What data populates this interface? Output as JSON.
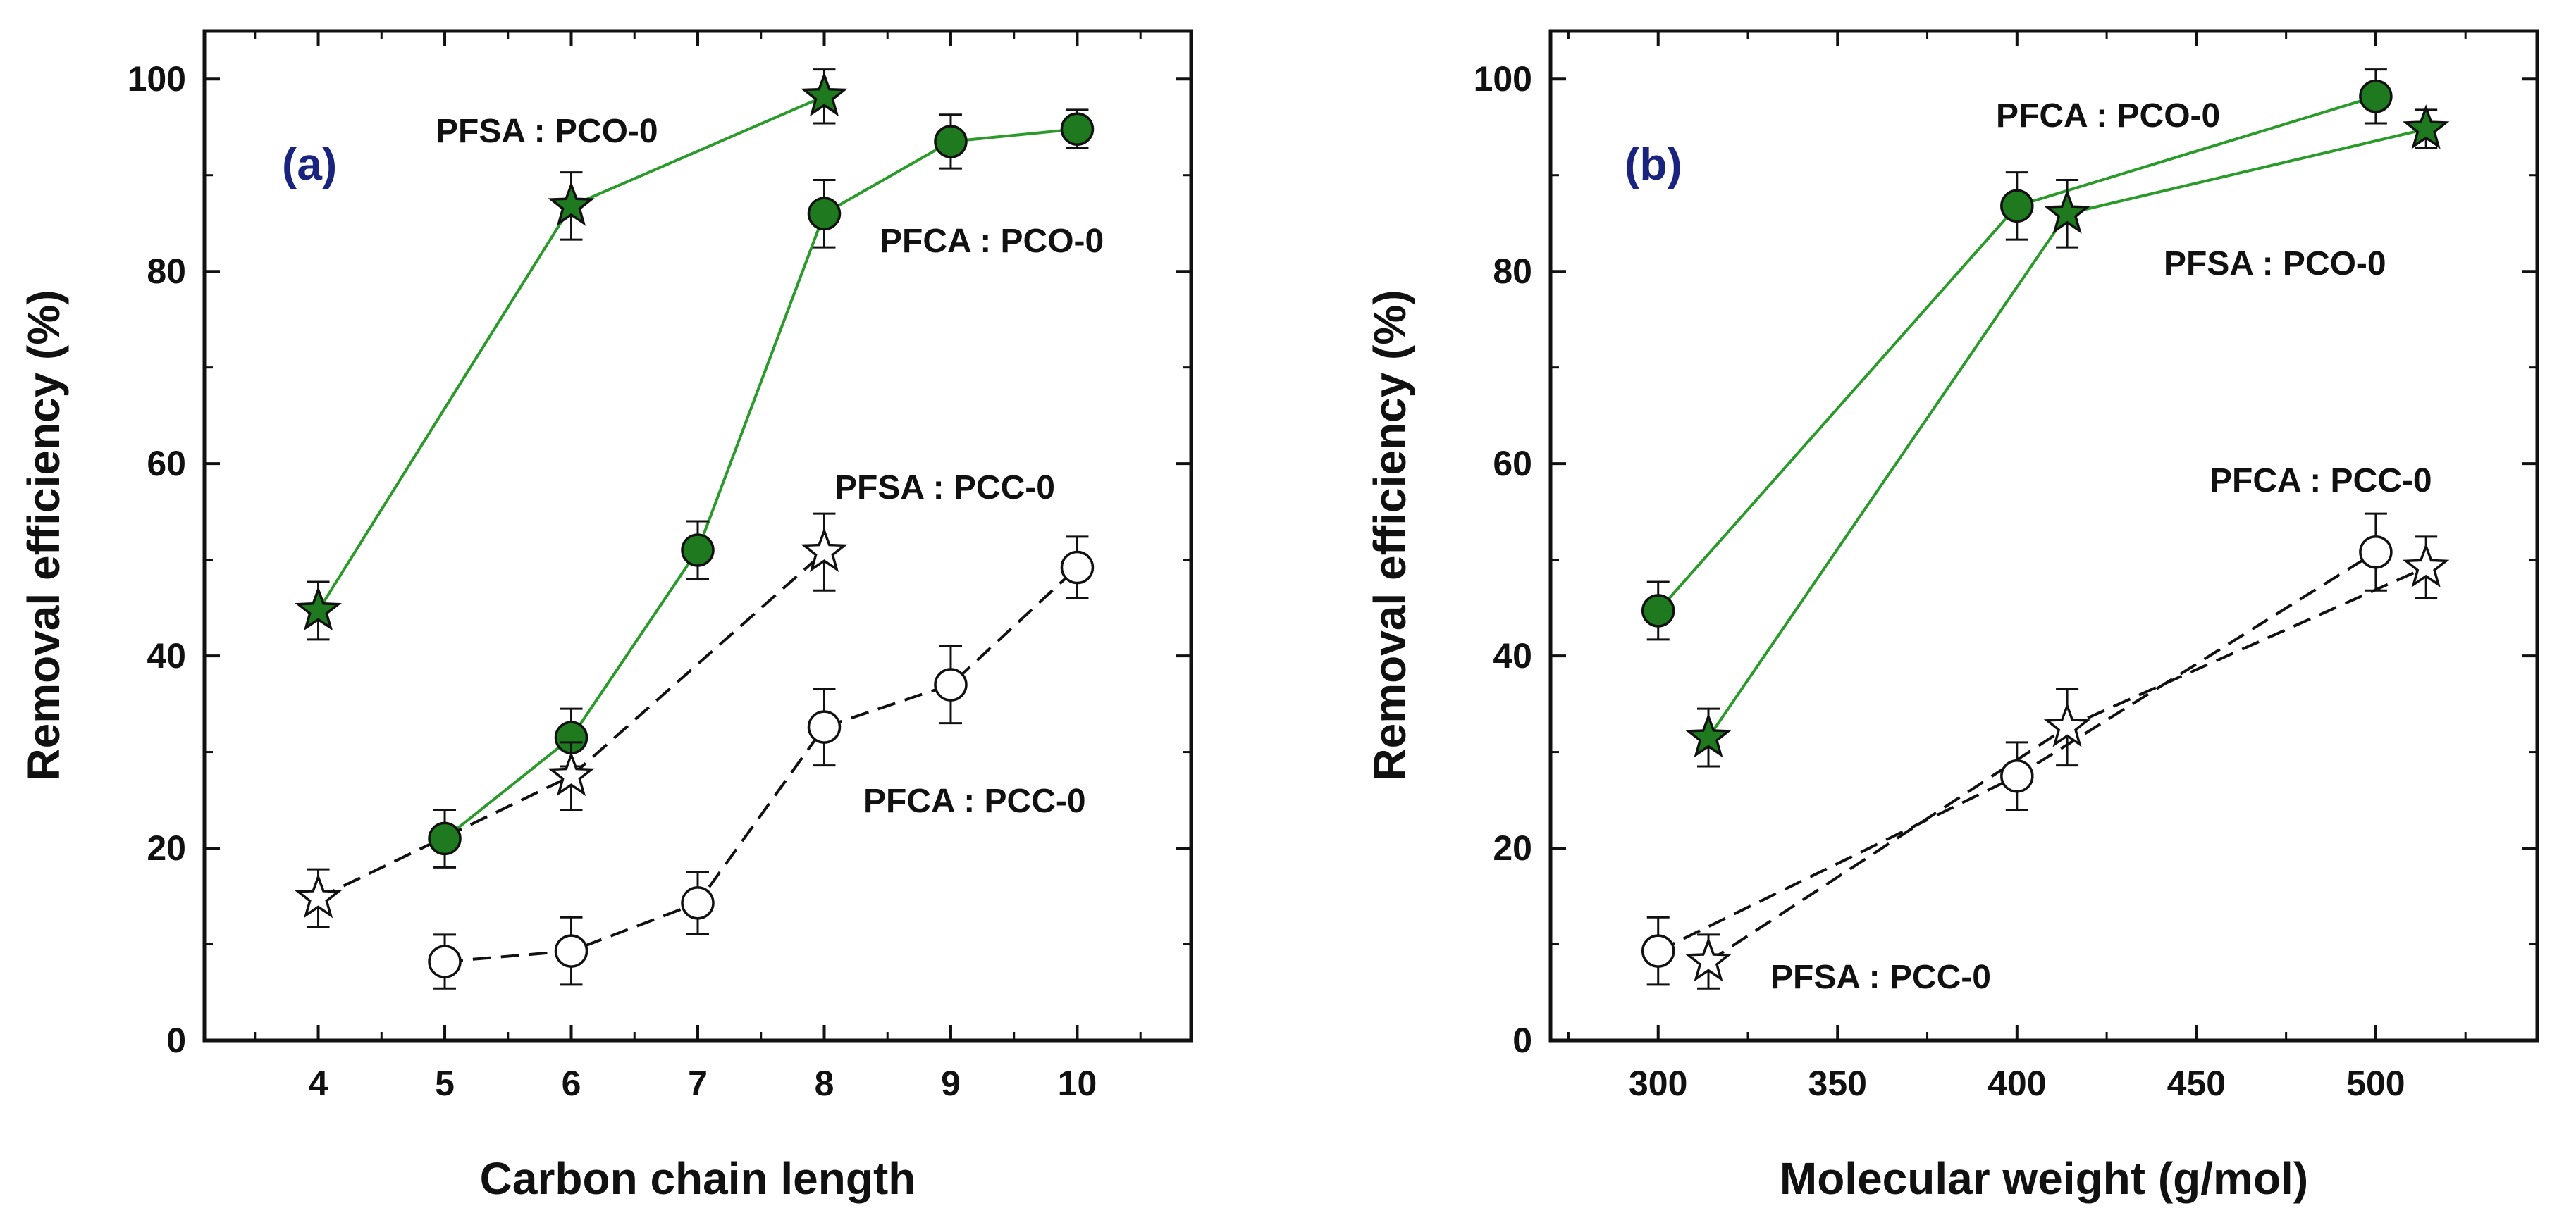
{
  "colors": {
    "green": "#1f7a1f",
    "greenLine": "#2a9a2a",
    "black": "#111111",
    "panelLabel": "#1a237e"
  },
  "chart_data": [
    {
      "type": "line",
      "panel_label": "(a)",
      "xlabel": "Carbon chain length",
      "ylabel": "Removal efficiency  (%)",
      "xlim": [
        3.1,
        10.9
      ],
      "ylim": [
        0,
        105
      ],
      "xticks": [
        4,
        5,
        6,
        7,
        8,
        9,
        10
      ],
      "yticks": [
        0,
        20,
        40,
        60,
        80,
        100
      ],
      "series": [
        {
          "name": "PFSA : PCO-0",
          "marker": "star",
          "filled": true,
          "dashed": false,
          "x": [
            4,
            6,
            8
          ],
          "y": [
            44.7,
            86.8,
            98.2
          ],
          "err": [
            3.0,
            3.5,
            2.8
          ]
        },
        {
          "name": "PFCA : PCO-0",
          "marker": "circle",
          "filled": true,
          "dashed": false,
          "x": [
            5,
            6,
            7,
            8,
            9,
            10
          ],
          "y": [
            21.0,
            31.5,
            51.0,
            86.0,
            93.5,
            94.8
          ],
          "err": [
            3.0,
            3.0,
            3.0,
            3.5,
            2.8,
            2.0
          ]
        },
        {
          "name": "PFSA : PCC-0",
          "marker": "star",
          "filled": false,
          "dashed": true,
          "x": [
            4,
            6,
            8
          ],
          "y": [
            14.8,
            27.5,
            50.8
          ],
          "err": [
            3.0,
            3.5,
            4.0
          ]
        },
        {
          "name": "PFCA : PCC-0",
          "marker": "circle",
          "filled": false,
          "dashed": true,
          "x": [
            5,
            6,
            7,
            8,
            9,
            10
          ],
          "y": [
            8.2,
            9.3,
            14.3,
            32.6,
            37.0,
            49.2
          ],
          "err": [
            2.8,
            3.5,
            3.2,
            4.0,
            4.0,
            3.2
          ]
        }
      ],
      "annotations": [
        "PFSA : PCO-0",
        "PFCA : PCO-0",
        "PFSA : PCC-0",
        "PFCA : PCC-0"
      ]
    },
    {
      "type": "line",
      "panel_label": "(b)",
      "xlabel": "Molecular weight  (g/mol)",
      "ylabel": "Removal efficiency  (%)",
      "xlim": [
        270,
        545
      ],
      "ylim": [
        0,
        105
      ],
      "xticks": [
        300,
        350,
        400,
        450,
        500
      ],
      "yticks": [
        0,
        20,
        40,
        60,
        80,
        100
      ],
      "series": [
        {
          "name": "PFCA : PCO-0",
          "marker": "circle",
          "filled": true,
          "dashed": false,
          "x": [
            300,
            400,
            500
          ],
          "y": [
            44.7,
            86.8,
            98.2
          ],
          "err": [
            3.0,
            3.5,
            2.8
          ]
        },
        {
          "name": "PFSA : PCO-0",
          "marker": "star",
          "filled": true,
          "dashed": false,
          "x": [
            314,
            414,
            514
          ],
          "y": [
            31.5,
            86.0,
            94.8
          ],
          "err": [
            3.0,
            3.5,
            2.0
          ]
        },
        {
          "name": "PFCA : PCC-0",
          "marker": "circle",
          "filled": false,
          "dashed": true,
          "x": [
            300,
            400,
            500
          ],
          "y": [
            9.3,
            27.5,
            50.8
          ],
          "err": [
            3.5,
            3.5,
            4.0
          ]
        },
        {
          "name": "PFSA : PCC-0",
          "marker": "star",
          "filled": false,
          "dashed": true,
          "x": [
            314,
            414,
            514
          ],
          "y": [
            8.2,
            32.6,
            49.2
          ],
          "err": [
            2.8,
            4.0,
            3.2
          ]
        }
      ],
      "annotations": [
        "PFCA : PCO-0",
        "PFSA : PCO-0",
        "PFCA : PCC-0",
        "PFSA : PCC-0"
      ]
    }
  ]
}
